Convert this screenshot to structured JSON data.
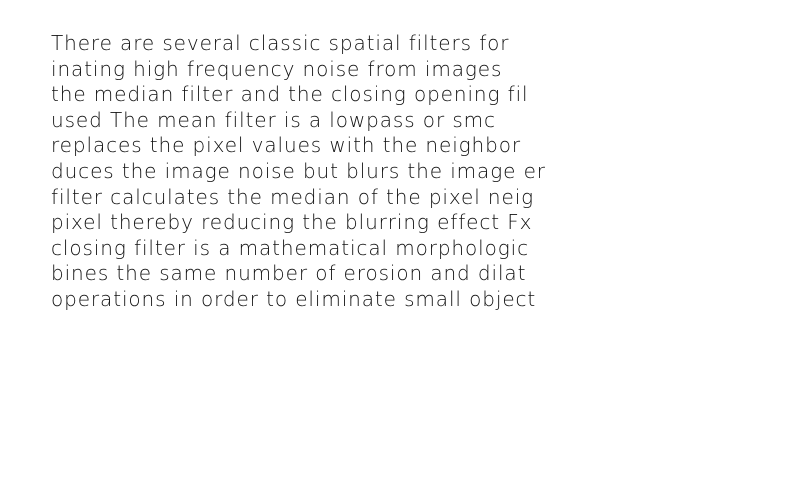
{
  "document": {
    "lines": [
      "There are several classic spatial filters for",
      "inating high frequency noise from images",
      "the median filter and the closing opening fil",
      "used The mean filter is a lowpass or smc",
      "replaces the pixel values with the neighbor",
      "duces the image noise but blurs the image er",
      "filter calculates the median of the pixel neig",
      "pixel thereby reducing the blurring effect Fx",
      "closing filter is a mathematical morphologic",
      "bines the same number of erosion and dilat",
      "operations in order to eliminate small object"
    ],
    "text_color": "#111111",
    "background_color": "#ffffff"
  }
}
